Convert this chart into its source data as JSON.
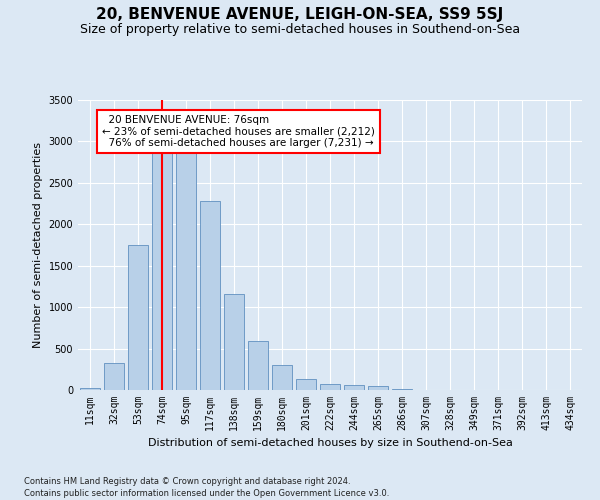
{
  "title": "20, BENVENUE AVENUE, LEIGH-ON-SEA, SS9 5SJ",
  "subtitle": "Size of property relative to semi-detached houses in Southend-on-Sea",
  "xlabel": "Distribution of semi-detached houses by size in Southend-on-Sea",
  "ylabel": "Number of semi-detached properties",
  "footnote1": "Contains HM Land Registry data © Crown copyright and database right 2024.",
  "footnote2": "Contains public sector information licensed under the Open Government Licence v3.0.",
  "categories": [
    "11sqm",
    "32sqm",
    "53sqm",
    "74sqm",
    "95sqm",
    "117sqm",
    "138sqm",
    "159sqm",
    "180sqm",
    "201sqm",
    "222sqm",
    "244sqm",
    "265sqm",
    "286sqm",
    "307sqm",
    "328sqm",
    "349sqm",
    "371sqm",
    "392sqm",
    "413sqm",
    "434sqm"
  ],
  "values": [
    30,
    330,
    1750,
    2950,
    2950,
    2280,
    1160,
    590,
    300,
    130,
    75,
    60,
    50,
    15,
    5,
    0,
    0,
    0,
    0,
    0,
    0
  ],
  "bar_color": "#b8d0e8",
  "bar_edge_color": "#6090c0",
  "vline_x_index": 3,
  "vline_color": "red",
  "property_label": "20 BENVENUE AVENUE: 76sqm",
  "pct_smaller": 23,
  "count_smaller": 2212,
  "pct_larger": 76,
  "count_larger": 7231,
  "annotation_box_facecolor": "#ffffff",
  "annotation_box_edgecolor": "red",
  "ylim": [
    0,
    3500
  ],
  "yticks": [
    0,
    500,
    1000,
    1500,
    2000,
    2500,
    3000,
    3500
  ],
  "bg_color": "#dce8f4",
  "grid_color": "#ffffff",
  "title_fontsize": 11,
  "subtitle_fontsize": 9,
  "ylabel_fontsize": 8,
  "xlabel_fontsize": 8,
  "tick_fontsize": 7,
  "annot_fontsize": 7.5,
  "footnote_fontsize": 6
}
